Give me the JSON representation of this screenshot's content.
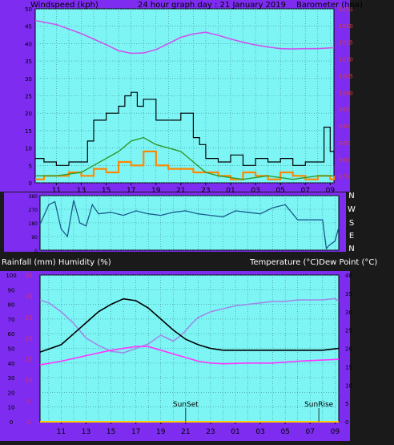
{
  "header": {
    "left_label": "Windspeed (kph)",
    "center_label": "24 hour graph day : 21 January 2019",
    "right_label": "Barometer (hpa)"
  },
  "bottom_header": {
    "left_label": "Rainfall (mm)  Humidity (%)",
    "right_label": "Temperature (°C)Dew Point (°C)"
  },
  "x_ticks": [
    "11",
    "13",
    "15",
    "17",
    "19",
    "21",
    "23",
    "01",
    "03",
    "05",
    "07",
    "09"
  ],
  "direction_labels": [
    "N",
    "W",
    "S",
    "E",
    "N"
  ],
  "annotations": {
    "sunset": "SunSet",
    "sunrise": "SunRise"
  },
  "colors": {
    "frame": "#7d2cf0",
    "plot_bg": "#7ef5f5",
    "grid": "#3a8a8a",
    "gust": "#000000",
    "wind": "#2c9a2c",
    "wind_avg": "#ff8800",
    "barometer": "#cc55ee",
    "direction": "#1a5a8a",
    "temperature": "#000000",
    "dewpoint": "#ff33ff",
    "humidity": "#9d8ce8",
    "rain_axis": "#ff2a2a"
  },
  "chart_data": [
    {
      "id": "wind_baro",
      "type": "line",
      "xlabel": "",
      "ylabel": "Windspeed (kph)",
      "y2label": "Barometer (hpa)",
      "x_start_hour": 9.3,
      "x_end_hour": 33.3,
      "ylim": [
        0,
        50
      ],
      "y_ticks": [
        0,
        5,
        10,
        15,
        20,
        25,
        30,
        35,
        40,
        45,
        50
      ],
      "y2lim": [
        973,
        1025
      ],
      "y2_ticks": [
        975,
        980,
        985,
        990,
        995,
        1000,
        1005,
        1010,
        1015,
        1020,
        1025
      ],
      "series": [
        {
          "name": "Barometer (hpa)",
          "axis": "right",
          "x": [
            9.3,
            11,
            13,
            15,
            16,
            17,
            18,
            19,
            20,
            21,
            22,
            23,
            24,
            25,
            26,
            27,
            28,
            29,
            30,
            31,
            32,
            33.3
          ],
          "values": [
            1021.5,
            1020.3,
            1017.6,
            1014.3,
            1012.5,
            1011.7,
            1011.8,
            1012.8,
            1014.6,
            1016.5,
            1017.5,
            1018.0,
            1017.1,
            1016.0,
            1015.0,
            1014.2,
            1013.6,
            1013.1,
            1013.0,
            1013.1,
            1013.1,
            1013.4
          ]
        },
        {
          "name": "Gust",
          "axis": "left",
          "x": [
            9.3,
            10,
            11,
            12,
            13,
            13.5,
            14,
            15,
            16,
            16.5,
            17,
            17.5,
            18,
            19,
            20,
            21,
            22,
            22.5,
            23,
            24,
            25,
            26,
            27,
            28,
            29,
            30,
            31,
            32,
            32.5,
            33,
            33.3
          ],
          "values": [
            7,
            6,
            5,
            6,
            6,
            12,
            18,
            20,
            22,
            25,
            26,
            22,
            24,
            18,
            18,
            20,
            13,
            11,
            7,
            6,
            8,
            5,
            7,
            6,
            7,
            5,
            6,
            6,
            16,
            9,
            5
          ]
        },
        {
          "name": "Wind",
          "axis": "left",
          "x": [
            9.3,
            11,
            13,
            14,
            15,
            16,
            17,
            18,
            19,
            20,
            21,
            22,
            23,
            24,
            26,
            28,
            30,
            32,
            33.3
          ],
          "values": [
            2,
            2,
            3,
            5,
            7,
            9,
            12,
            13,
            11,
            10,
            9,
            6,
            3,
            2,
            1,
            2,
            1,
            2,
            2
          ]
        },
        {
          "name": "Average",
          "axis": "left",
          "x": [
            9.3,
            10,
            11,
            12,
            13,
            14,
            15,
            16,
            17,
            18,
            19,
            20,
            21,
            22,
            23,
            24,
            25,
            26,
            27,
            28,
            29,
            30,
            31,
            32,
            33,
            33.3
          ],
          "values": [
            1,
            2,
            2,
            3,
            2,
            4,
            3,
            6,
            5,
            9,
            5,
            4,
            4,
            3,
            3,
            2,
            1,
            3,
            2,
            1,
            3,
            2,
            1,
            2,
            1,
            2
          ]
        }
      ]
    },
    {
      "id": "direction",
      "type": "line",
      "xlabel": "",
      "ylabel": "",
      "ylim": [
        0,
        360
      ],
      "y_ticks": [
        0,
        90,
        180,
        270,
        360
      ],
      "series": [
        {
          "name": "Direction",
          "x": [
            9.3,
            10,
            10.5,
            11,
            11.5,
            12,
            12.5,
            13,
            13.5,
            14,
            15,
            16,
            17,
            18,
            19,
            20,
            21,
            22,
            23,
            24,
            25,
            26,
            27,
            28,
            29,
            30,
            31,
            32,
            32.3,
            32.5,
            33,
            33.3
          ],
          "values": [
            170,
            300,
            320,
            140,
            90,
            330,
            180,
            160,
            300,
            240,
            250,
            230,
            260,
            240,
            230,
            250,
            260,
            240,
            230,
            220,
            260,
            250,
            240,
            280,
            300,
            200,
            200,
            200,
            10,
            30,
            60,
            150
          ]
        }
      ]
    },
    {
      "id": "temp_hum",
      "type": "line",
      "xlabel": "",
      "ylabel": "Rainfall (mm)  Humidity (%)",
      "y2label": "Temperature (°C)Dew Point (°C)",
      "ylim": [
        0,
        100
      ],
      "y_ticks": [
        0,
        10,
        20,
        30,
        40,
        50,
        60,
        70,
        80,
        90,
        100
      ],
      "rain_ticks": [
        0,
        5,
        10,
        15,
        20,
        25,
        30,
        35
      ],
      "y2lim": [
        0,
        40
      ],
      "y2_ticks": [
        0,
        5,
        10,
        15,
        20,
        25,
        30,
        35,
        40
      ],
      "series": [
        {
          "name": "Temperature (°C)",
          "axis": "right",
          "x": [
            9.3,
            11,
            12,
            13,
            14,
            15,
            16,
            17,
            18,
            19,
            20,
            21,
            22,
            23,
            24,
            25,
            26,
            28,
            30,
            31,
            32,
            33.3
          ],
          "values": [
            19,
            21,
            24,
            27,
            30,
            32,
            33.5,
            33,
            31,
            28,
            25,
            22.5,
            21,
            20,
            19.5,
            19.5,
            19.5,
            19.5,
            19.5,
            19.5,
            19.5,
            20
          ]
        },
        {
          "name": "Dew Point (°C)",
          "axis": "right",
          "x": [
            9.3,
            11,
            13,
            15,
            17,
            18,
            19,
            20,
            21,
            22,
            23,
            24,
            26,
            28,
            30,
            32,
            33.3
          ],
          "values": [
            15.5,
            16.5,
            18,
            19.5,
            20.5,
            20.5,
            19.5,
            18.5,
            17.5,
            16.5,
            16,
            15.8,
            16,
            16,
            16.5,
            16.8,
            17
          ]
        },
        {
          "name": "Humidity (%)",
          "axis": "left",
          "x": [
            9.3,
            10,
            11,
            12,
            13,
            14,
            15,
            16,
            17,
            18,
            19,
            20,
            20.5,
            21,
            21.5,
            22,
            23,
            24,
            25,
            26,
            27,
            28,
            29,
            30,
            31,
            32,
            33,
            33.3
          ],
          "values": [
            83,
            81,
            75,
            67,
            57,
            52,
            48,
            47,
            50,
            53,
            59,
            55,
            58,
            62,
            67,
            71,
            75,
            77,
            79,
            80,
            81,
            82,
            82,
            83,
            83,
            83,
            84,
            82
          ]
        },
        {
          "name": "Rainfall (mm)",
          "axis": "rain",
          "x": [
            9.3,
            33.3
          ],
          "values": [
            0,
            0
          ]
        }
      ],
      "sunset_hour": 21.0,
      "sunrise_hour": 31.7
    }
  ]
}
